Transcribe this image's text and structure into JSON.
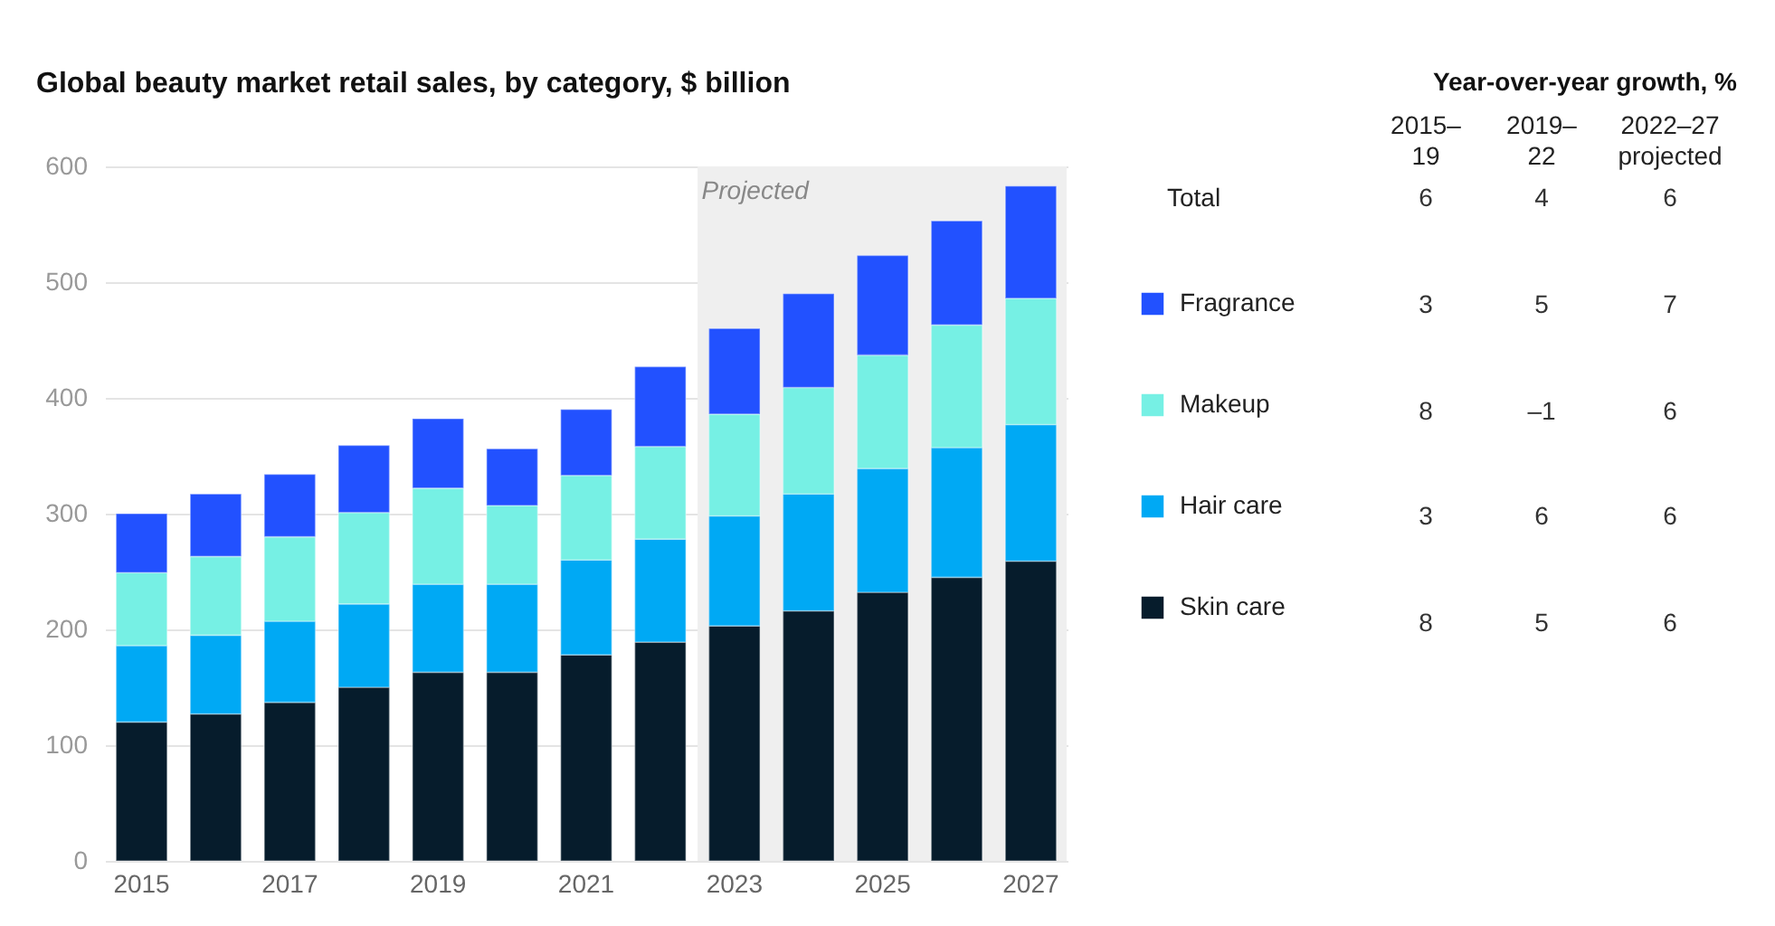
{
  "chart_data": [
    {
      "type": "bar",
      "title": "Global beauty market retail sales, by category, $ billion",
      "stacked": true,
      "categories": [
        "2015",
        null,
        "2017",
        null,
        "2019",
        null,
        "2021",
        null,
        "2023",
        null,
        "2025",
        null,
        "2027"
      ],
      "series": [
        {
          "name": "Skin care",
          "color": "#061c2c",
          "values": [
            120,
            127,
            137,
            150,
            163,
            163,
            178,
            189,
            203,
            216,
            232,
            245,
            259
          ]
        },
        {
          "name": "Hair care",
          "color": "#00a9f4",
          "values": [
            66,
            68,
            70,
            72,
            76,
            76,
            82,
            89,
            95,
            101,
            107,
            112,
            118
          ]
        },
        {
          "name": "Makeup",
          "color": "#76f0e4",
          "values": [
            63,
            68,
            73,
            79,
            83,
            68,
            73,
            80,
            88,
            92,
            98,
            106,
            109
          ]
        },
        {
          "name": "Fragrance",
          "color": "#2251ff",
          "values": [
            51,
            54,
            54,
            58,
            60,
            49,
            57,
            69,
            74,
            81,
            86,
            90,
            97
          ]
        }
      ],
      "ylim": [
        0,
        600
      ],
      "yticks": [
        0,
        100,
        200,
        300,
        400,
        500,
        600
      ],
      "grid": "y",
      "legend": "right",
      "bands": [
        {
          "axis": "x",
          "from": "2023",
          "to": "2027",
          "label": "Projected",
          "color": "#efefef"
        }
      ]
    },
    {
      "type": "other",
      "title": "Year-over-year growth, %",
      "categories": [
        "2015–19",
        "2019–22",
        "2022–27 projected"
      ],
      "y_categories": [
        "Total",
        null,
        null,
        null,
        null
      ],
      "cell_labels": [
        [
          "6",
          "4",
          "6"
        ],
        [
          "3",
          "5",
          "7"
        ],
        [
          "8",
          "–1",
          "6"
        ],
        [
          "3",
          "6",
          "6"
        ],
        [
          "8",
          "5",
          "6"
        ]
      ],
      "data_labels": true
    }
  ]
}
